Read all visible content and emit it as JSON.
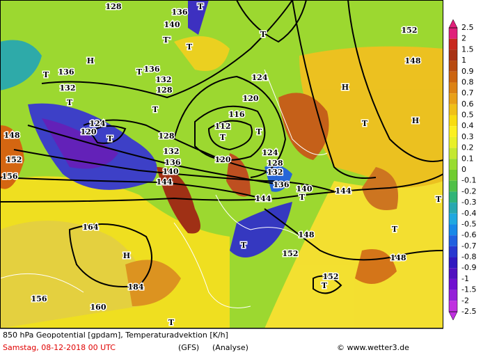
{
  "map": {
    "labels": [
      "128",
      "136",
      "T",
      "140",
      "T'",
      "T",
      "T",
      "152",
      "148",
      "H",
      "T",
      "136",
      "132",
      "T",
      "136",
      "132",
      "128",
      "124",
      "H",
      "T",
      "T",
      "116",
      "120",
      "T",
      "H",
      "124",
      "120",
      "T",
      "112",
      "T",
      "128",
      "T",
      "148",
      "152",
      "132",
      "136",
      "120",
      "124",
      "128",
      "132",
      "140",
      "144",
      "136",
      "144",
      "140",
      "T",
      "144",
      "156",
      "T",
      "164",
      "T",
      "148",
      "T",
      "H",
      "152",
      "148",
      "152",
      "T",
      "184",
      "156",
      "160",
      "T"
    ]
  },
  "legend": {
    "labels": [
      "2.5",
      "2",
      "1.5",
      "1",
      "0.9",
      "0.8",
      "0.7",
      "0.6",
      "0.5",
      "0.4",
      "0.3",
      "0.2",
      "0.1",
      "0",
      "-0.1",
      "-0.2",
      "-0.3",
      "-0.4",
      "-0.5",
      "-0.6",
      "-0.7",
      "-0.8",
      "-0.9",
      "-1",
      "-1.5",
      "-2",
      "-2.5"
    ],
    "colors": [
      "#e0207a",
      "#c8281e",
      "#a83214",
      "#b84a10",
      "#cc6410",
      "#dc8214",
      "#e8a018",
      "#f0c018",
      "#f8dc10",
      "#fcf020",
      "#e8f028",
      "#c4e830",
      "#98dc30",
      "#70cc30",
      "#50c048",
      "#30b478",
      "#28a8b0",
      "#20a8e0",
      "#1888e8",
      "#2060e0",
      "#2838d0",
      "#3018c0",
      "#5010c0",
      "#7010d0",
      "#9420d8",
      "#c030e0"
    ]
  },
  "footer": {
    "title": "850 hPa Geopotential [gpdam], Temperaturadvektion [K/h]",
    "date": "Samstag, 08-12-2018  00 UTC",
    "model": "(GFS)",
    "run": "(Analyse)",
    "credit": "© www.wetter3.de"
  }
}
